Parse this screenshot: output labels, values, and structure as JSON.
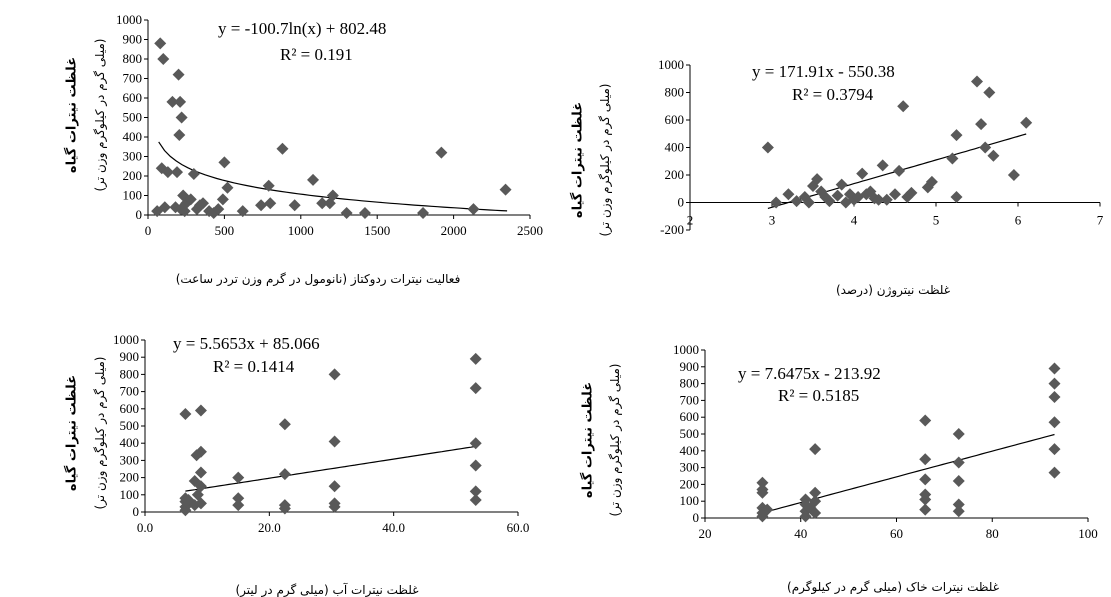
{
  "chart_data": [
    {
      "type": "scatter",
      "xlim": [
        0,
        2500
      ],
      "ylim": [
        0,
        1000
      ],
      "xticks": [
        "0",
        "500",
        "1000",
        "1500",
        "2000",
        "2500"
      ],
      "yticks": [
        "0",
        "100",
        "200",
        "300",
        "400",
        "500",
        "600",
        "700",
        "800",
        "900",
        "1000"
      ],
      "xlabel": "فعالیت نیترات ردوکتاز (نانومول در گرم وزن تردر ساعت)",
      "ylabel": "غلظت نیترات گیاه",
      "ylabel2": "(میلی گرم در کیلوگرم وزن تر)",
      "equation": "y = -100.7ln(x) + 802.48",
      "r2": "R² = 0.191",
      "trend": {
        "kind": "log",
        "a": -100.7,
        "b": 802.48,
        "xrange": [
          70,
          2350
        ]
      },
      "points": [
        [
          80,
          880
        ],
        [
          100,
          800
        ],
        [
          60,
          20
        ],
        [
          90,
          240
        ],
        [
          110,
          40
        ],
        [
          130,
          220
        ],
        [
          160,
          580
        ],
        [
          180,
          40
        ],
        [
          190,
          220
        ],
        [
          200,
          720
        ],
        [
          205,
          410
        ],
        [
          210,
          580
        ],
        [
          220,
          500
        ],
        [
          215,
          30
        ],
        [
          230,
          100
        ],
        [
          250,
          60
        ],
        [
          240,
          20
        ],
        [
          280,
          80
        ],
        [
          300,
          210
        ],
        [
          320,
          30
        ],
        [
          340,
          50
        ],
        [
          360,
          60
        ],
        [
          400,
          20
        ],
        [
          430,
          10
        ],
        [
          460,
          30
        ],
        [
          490,
          80
        ],
        [
          500,
          270
        ],
        [
          520,
          140
        ],
        [
          620,
          20
        ],
        [
          740,
          50
        ],
        [
          790,
          150
        ],
        [
          800,
          60
        ],
        [
          880,
          340
        ],
        [
          960,
          50
        ],
        [
          1080,
          180
        ],
        [
          1140,
          60
        ],
        [
          1190,
          60
        ],
        [
          1210,
          100
        ],
        [
          1300,
          10
        ],
        [
          1420,
          10
        ],
        [
          1800,
          10
        ],
        [
          1920,
          320
        ],
        [
          2130,
          30
        ],
        [
          2340,
          130
        ]
      ]
    },
    {
      "type": "scatter",
      "xlim": [
        2,
        7
      ],
      "ylim": [
        -200,
        1000
      ],
      "xticks": [
        "2",
        "3",
        "4",
        "5",
        "6",
        "7"
      ],
      "yticks": [
        "-200",
        "0",
        "200",
        "400",
        "600",
        "800",
        "1000"
      ],
      "xlabel": "غلظت نیتروژن (درصد)",
      "ylabel": "غلظت نیترات گیاه",
      "ylabel2": "(میلی گرم در کیلوگرم وزن تر)",
      "equation": "y = 171.91x - 550.38",
      "r2": "R² = 0.3794",
      "trend": {
        "kind": "linear",
        "a": 171.91,
        "b": -550.38,
        "xrange": [
          2.95,
          6.1
        ]
      },
      "points": [
        [
          2.95,
          400
        ],
        [
          3.05,
          0
        ],
        [
          3.2,
          60
        ],
        [
          3.3,
          10
        ],
        [
          3.4,
          40
        ],
        [
          3.45,
          0
        ],
        [
          3.5,
          120
        ],
        [
          3.55,
          170
        ],
        [
          3.6,
          80
        ],
        [
          3.65,
          40
        ],
        [
          3.7,
          10
        ],
        [
          3.8,
          50
        ],
        [
          3.85,
          130
        ],
        [
          3.9,
          0
        ],
        [
          3.95,
          60
        ],
        [
          4.0,
          20
        ],
        [
          4.05,
          40
        ],
        [
          4.1,
          210
        ],
        [
          4.15,
          60
        ],
        [
          4.2,
          80
        ],
        [
          4.25,
          30
        ],
        [
          4.3,
          20
        ],
        [
          4.35,
          270
        ],
        [
          4.4,
          20
        ],
        [
          4.5,
          60
        ],
        [
          4.55,
          230
        ],
        [
          4.6,
          700
        ],
        [
          4.65,
          40
        ],
        [
          4.7,
          70
        ],
        [
          4.9,
          110
        ],
        [
          4.95,
          150
        ],
        [
          5.2,
          320
        ],
        [
          5.25,
          40
        ],
        [
          5.25,
          490
        ],
        [
          5.5,
          880
        ],
        [
          5.55,
          570
        ],
        [
          5.6,
          400
        ],
        [
          5.65,
          800
        ],
        [
          5.7,
          340
        ],
        [
          5.95,
          200
        ],
        [
          6.1,
          580
        ]
      ]
    },
    {
      "type": "scatter",
      "xlim": [
        0,
        60
      ],
      "ylim": [
        0,
        1000
      ],
      "xticks": [
        "0.0",
        "20.0",
        "40.0",
        "60.0"
      ],
      "yticks": [
        "0",
        "100",
        "200",
        "300",
        "400",
        "500",
        "600",
        "700",
        "800",
        "900",
        "1000"
      ],
      "xlabel": "غلظت نیترات آب (میلی گرم در لیتر)",
      "ylabel": "غلظت نیترات گیاه",
      "ylabel2": "(میلی گرم در کیلوگرم وزن تر)",
      "equation": "y = 5.5653x + 85.066",
      "r2": "R² = 0.1414",
      "trend": {
        "kind": "linear",
        "a": 5.5653,
        "b": 85.066,
        "xrange": [
          6.5,
          53.2
        ]
      },
      "points": [
        [
          6.5,
          570
        ],
        [
          6.5,
          80
        ],
        [
          6.5,
          60
        ],
        [
          6.5,
          30
        ],
        [
          6.5,
          10
        ],
        [
          7,
          50
        ],
        [
          7,
          70
        ],
        [
          8,
          40
        ],
        [
          8,
          180
        ],
        [
          8.3,
          330
        ],
        [
          8.5,
          100
        ],
        [
          9,
          590
        ],
        [
          9,
          350
        ],
        [
          9,
          230
        ],
        [
          9,
          150
        ],
        [
          9,
          50
        ],
        [
          15,
          200
        ],
        [
          15,
          80
        ],
        [
          15,
          40
        ],
        [
          22.5,
          510
        ],
        [
          22.5,
          220
        ],
        [
          22.5,
          40
        ],
        [
          22.5,
          20
        ],
        [
          30.5,
          800
        ],
        [
          30.5,
          410
        ],
        [
          30.5,
          150
        ],
        [
          30.5,
          50
        ],
        [
          30.5,
          30
        ],
        [
          53.2,
          890
        ],
        [
          53.2,
          720
        ],
        [
          53.2,
          400
        ],
        [
          53.2,
          270
        ],
        [
          53.2,
          120
        ],
        [
          53.2,
          70
        ]
      ]
    },
    {
      "type": "scatter",
      "xlim": [
        20,
        100
      ],
      "ylim": [
        0,
        1000
      ],
      "xticks": [
        "20",
        "40",
        "60",
        "80",
        "100"
      ],
      "yticks": [
        "0",
        "100",
        "200",
        "300",
        "400",
        "500",
        "600",
        "700",
        "800",
        "900",
        "1000"
      ],
      "xlabel": "غلظت نیترات خاک (میلی گرم در کیلوگرم)",
      "ylabel": "غلظت نیترات گیاه",
      "ylabel2": "(میلی گرم در کیلوگرم وزن تر)",
      "equation": "y = 7.6475x - 213.92",
      "r2": "R² = 0.5185",
      "trend": {
        "kind": "linear",
        "a": 7.6475,
        "b": -213.92,
        "xrange": [
          32,
          93
        ]
      },
      "points": [
        [
          32,
          210
        ],
        [
          32,
          170
        ],
        [
          32,
          150
        ],
        [
          32,
          60
        ],
        [
          32,
          30
        ],
        [
          32,
          10
        ],
        [
          33,
          50
        ],
        [
          41,
          110
        ],
        [
          41,
          80
        ],
        [
          41,
          40
        ],
        [
          41,
          10
        ],
        [
          42,
          60
        ],
        [
          43,
          410
        ],
        [
          43,
          150
        ],
        [
          43,
          100
        ],
        [
          43,
          30
        ],
        [
          66,
          580
        ],
        [
          66,
          350
        ],
        [
          66,
          230
        ],
        [
          66,
          140
        ],
        [
          66,
          110
        ],
        [
          66,
          50
        ],
        [
          73,
          500
        ],
        [
          73,
          330
        ],
        [
          73,
          220
        ],
        [
          73,
          80
        ],
        [
          73,
          40
        ],
        [
          93,
          890
        ],
        [
          93,
          800
        ],
        [
          93,
          720
        ],
        [
          93,
          570
        ],
        [
          93,
          410
        ],
        [
          93,
          270
        ]
      ]
    }
  ]
}
